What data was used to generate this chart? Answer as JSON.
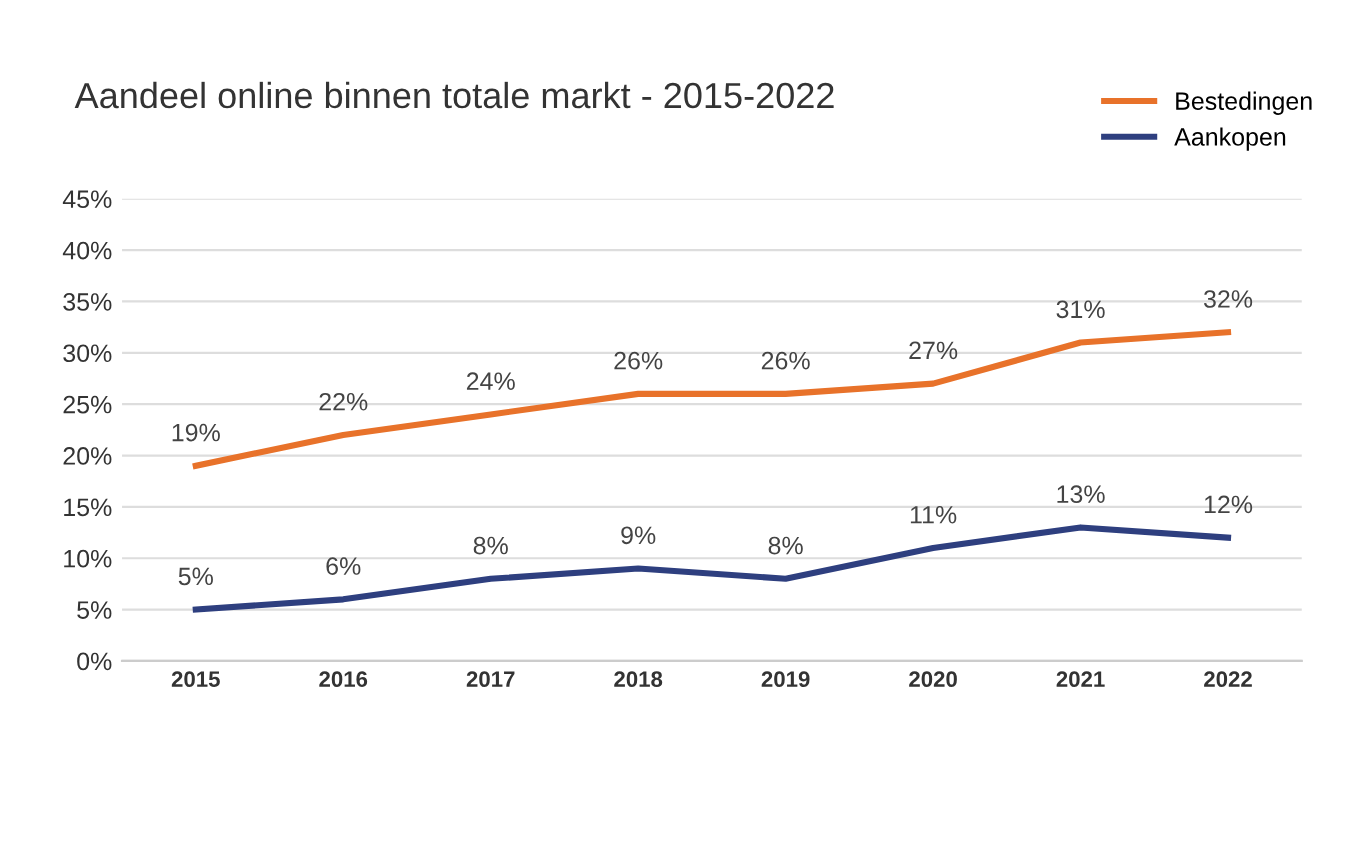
{
  "chart_data": {
    "type": "line",
    "title": "Aandeel online binnen totale markt - 2015-2022",
    "categories": [
      "2015",
      "2016",
      "2017",
      "2018",
      "2019",
      "2020",
      "2021",
      "2022"
    ],
    "series": [
      {
        "name": "Bestedingen",
        "color": "#e8722a",
        "values": [
          19,
          22,
          24,
          26,
          26,
          27,
          31,
          32
        ],
        "value_labels": [
          "19%",
          "22%",
          "24%",
          "26%",
          "26%",
          "27%",
          "31%",
          "32%"
        ]
      },
      {
        "name": "Aankopen",
        "color": "#2e3f7f",
        "values": [
          5,
          6,
          8,
          9,
          8,
          11,
          13,
          12
        ],
        "value_labels": [
          "5%",
          "6%",
          "8%",
          "9%",
          "8%",
          "11%",
          "13%",
          "12%"
        ]
      }
    ],
    "ylim": [
      0,
      45
    ],
    "yticks": [
      {
        "value": 0,
        "label": "0%"
      },
      {
        "value": 5,
        "label": "5%"
      },
      {
        "value": 10,
        "label": "10%"
      },
      {
        "value": 15,
        "label": "15%"
      },
      {
        "value": 20,
        "label": "20%"
      },
      {
        "value": 25,
        "label": "25%"
      },
      {
        "value": 30,
        "label": "30%"
      },
      {
        "value": 35,
        "label": "35%"
      },
      {
        "value": 40,
        "label": "40%"
      },
      {
        "value": 45,
        "label": "45%"
      }
    ],
    "grid": "y",
    "legend": "top right",
    "marker": "none",
    "line_style": "solid"
  }
}
